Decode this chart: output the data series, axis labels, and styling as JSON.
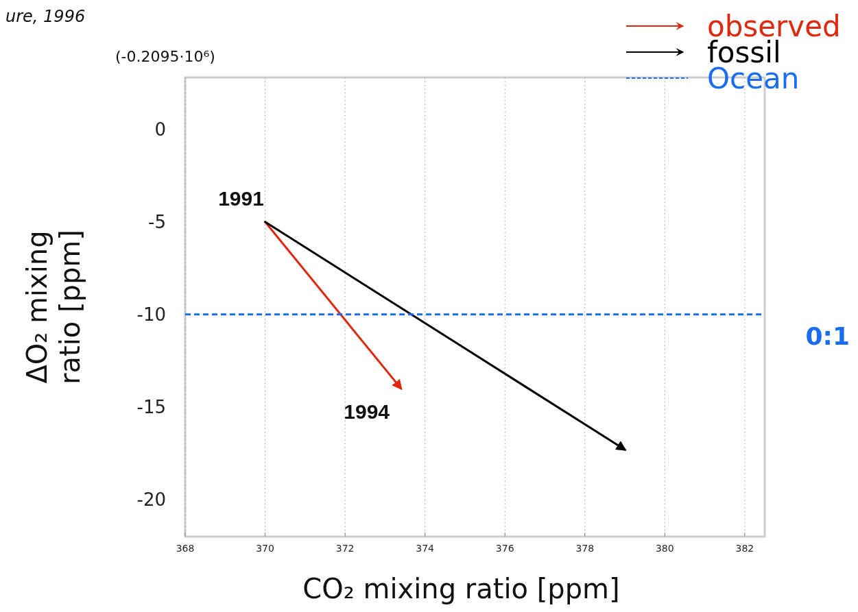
{
  "chart_data": {
    "type": "line",
    "xlabel": "CO₂ mixing ratio [ppm]",
    "ylabel": "ΔO₂ mixing ratio [ppm]",
    "xlim": [
      368,
      382.5
    ],
    "xticks": [
      368,
      370,
      372,
      374,
      376,
      378,
      380,
      382
    ],
    "ylim": [
      -22,
      2.8
    ],
    "yticks": [
      0,
      -5,
      -10,
      -15,
      -20
    ],
    "grid": "x",
    "legend": "top right",
    "marker": "none",
    "series": [
      {
        "name": "observed",
        "color": "#e0280f",
        "x": [
          370,
          373.4
        ],
        "values": [
          -5,
          -14
        ]
      },
      {
        "name": "fossil",
        "color": "#000000",
        "x": [
          370,
          379
        ],
        "values": [
          -5,
          -17.3
        ]
      },
      {
        "name": "Ocean",
        "color": "#1a6cf0",
        "x": [
          368,
          382.5
        ],
        "values": [
          -10,
          -10
        ],
        "line_style": "dashed"
      }
    ],
    "annotations": [
      {
        "text": "0:1",
        "x": 382.5,
        "y": -10
      },
      {
        "text": "1991",
        "x": 370,
        "y": -5
      },
      {
        "text": "1994",
        "x": 373.4,
        "y": -14
      },
      "ure, 1996",
      "(-0.2095·10⁶)"
    ]
  }
}
